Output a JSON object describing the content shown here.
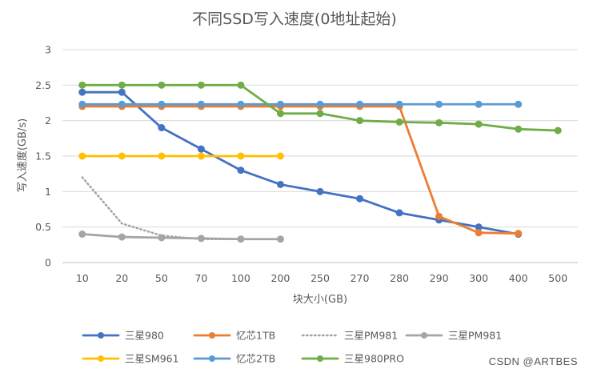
{
  "watermark": "CSDN @ARTBES",
  "chart_data": {
    "type": "line",
    "title": "不同SSD写入速度(0地址起始)",
    "xlabel": "块大小(GB)",
    "ylabel": "写入速度(GB/s)",
    "categories": [
      "10",
      "20",
      "50",
      "70",
      "100",
      "200",
      "250",
      "270",
      "280",
      "290",
      "300",
      "400",
      "500"
    ],
    "ylim": [
      0,
      3
    ],
    "yticks": [
      "0",
      "0.5",
      "1",
      "1.5",
      "2",
      "2.5",
      "3"
    ],
    "grid": true,
    "legend_position": "bottom",
    "series": [
      {
        "name": "三星980",
        "color": "#4472C4",
        "style": "solid",
        "marker": true,
        "values": [
          2.4,
          2.4,
          1.9,
          1.6,
          1.3,
          1.1,
          1.0,
          0.9,
          0.7,
          0.6,
          0.5,
          0.4,
          null
        ]
      },
      {
        "name": "忆芯1TB",
        "color": "#ED7D31",
        "style": "solid",
        "marker": true,
        "values": [
          2.2,
          2.2,
          2.2,
          2.2,
          2.2,
          2.2,
          2.2,
          2.2,
          2.2,
          0.65,
          0.42,
          0.41,
          null
        ]
      },
      {
        "name": "三星PM981",
        "color": "#A5A5A5",
        "style": "dotted",
        "marker": false,
        "values": [
          1.2,
          0.55,
          0.38,
          0.33,
          0.33,
          0.33,
          null,
          null,
          null,
          null,
          null,
          null,
          null
        ]
      },
      {
        "name": "三星PM981",
        "color": "#A5A5A5",
        "style": "solid",
        "marker": true,
        "values": [
          0.4,
          0.36,
          0.35,
          0.34,
          0.33,
          0.33,
          null,
          null,
          null,
          null,
          null,
          null,
          null
        ]
      },
      {
        "name": "三星SM961",
        "color": "#FFC000",
        "style": "solid",
        "marker": true,
        "values": [
          1.5,
          1.5,
          1.5,
          1.5,
          1.5,
          1.5,
          null,
          null,
          null,
          null,
          null,
          null,
          null
        ]
      },
      {
        "name": "忆芯2TB",
        "color": "#5B9BD5",
        "style": "solid",
        "marker": true,
        "values": [
          2.23,
          2.23,
          2.23,
          2.23,
          2.23,
          2.23,
          2.23,
          2.23,
          2.23,
          2.23,
          2.23,
          2.23,
          null
        ]
      },
      {
        "name": "三星980PRO",
        "color": "#70AD47",
        "style": "solid",
        "marker": true,
        "values": [
          2.5,
          2.5,
          2.5,
          2.5,
          2.5,
          2.1,
          2.1,
          2.0,
          1.98,
          1.97,
          1.95,
          1.88,
          1.86
        ]
      }
    ]
  }
}
